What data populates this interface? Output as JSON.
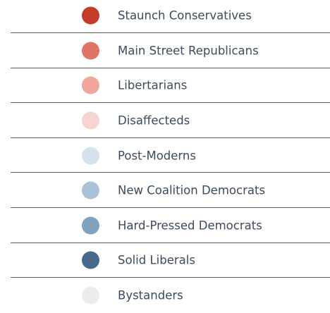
{
  "legend": {
    "items": [
      {
        "label": "Staunch Conservatives",
        "color": "#c43b2c"
      },
      {
        "label": "Main Street Republicans",
        "color": "#e07466"
      },
      {
        "label": "Libertarians",
        "color": "#f0a69b"
      },
      {
        "label": "Disaffecteds",
        "color": "#f7d4cf"
      },
      {
        "label": "Post-Moderns",
        "color": "#d5e2ee"
      },
      {
        "label": "New Coalition Democrats",
        "color": "#a9c2d7"
      },
      {
        "label": "Hard-Pressed Democrats",
        "color": "#7fa3be"
      },
      {
        "label": "Solid Liberals",
        "color": "#476a8a"
      },
      {
        "label": "Bystanders",
        "color": "#ececec"
      }
    ]
  }
}
